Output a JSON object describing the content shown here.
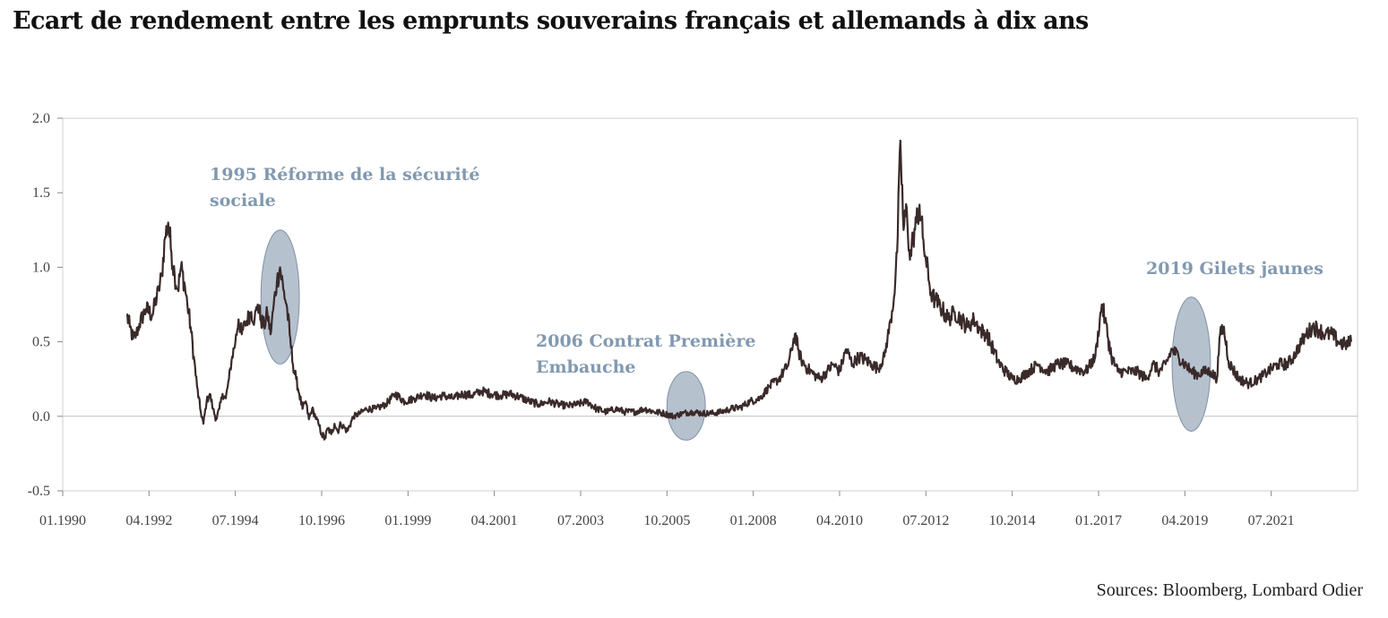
{
  "title": "Ecart de rendement entre les emprunts souverains français et allemands à dix ans",
  "source": "Sources: Bloomberg, Lombard Odier",
  "chart_data": {
    "type": "line",
    "xlim": [
      "1990-01",
      "2023-10"
    ],
    "ylim": [
      -0.5,
      2.0
    ],
    "y_ticks": [
      "-0.5",
      "0.0",
      "0.5",
      "1.0",
      "1.5",
      "2.0"
    ],
    "x_ticks": [
      "01.1990",
      "04.1992",
      "07.1994",
      "10.1996",
      "01.1999",
      "04.2001",
      "07.2003",
      "10.2005",
      "01.2008",
      "04.2010",
      "07.2012",
      "10.2014",
      "01.2017",
      "04.2019",
      "07.2021"
    ],
    "grid": false,
    "line_color": "#3a2a2a",
    "highlight_color": "#a9b6c6",
    "series": [
      {
        "points": [
          [
            "1991-09",
            0.68
          ],
          [
            "1991-10",
            0.6
          ],
          [
            "1991-11",
            0.52
          ],
          [
            "1991-12",
            0.55
          ],
          [
            "1992-01",
            0.62
          ],
          [
            "1992-03",
            0.72
          ],
          [
            "1992-05",
            0.68
          ],
          [
            "1992-07",
            0.85
          ],
          [
            "1992-08",
            0.95
          ],
          [
            "1992-09",
            1.2
          ],
          [
            "1992-10",
            1.3
          ],
          [
            "1992-11",
            1.1
          ],
          [
            "1992-12",
            0.95
          ],
          [
            "1993-01",
            0.85
          ],
          [
            "1993-02",
            1.0
          ],
          [
            "1993-03",
            0.9
          ],
          [
            "1993-04",
            0.75
          ],
          [
            "1993-05",
            0.6
          ],
          [
            "1993-06",
            0.4
          ],
          [
            "1993-07",
            0.2
          ],
          [
            "1993-08",
            0.05
          ],
          [
            "1993-09",
            -0.05
          ],
          [
            "1993-10",
            0.1
          ],
          [
            "1993-11",
            0.15
          ],
          [
            "1993-12",
            0.05
          ],
          [
            "1994-01",
            -0.02
          ],
          [
            "1994-02",
            0.05
          ],
          [
            "1994-03",
            0.15
          ],
          [
            "1994-04",
            0.12
          ],
          [
            "1994-05",
            0.25
          ],
          [
            "1994-06",
            0.4
          ],
          [
            "1994-07",
            0.5
          ],
          [
            "1994-08",
            0.65
          ],
          [
            "1994-09",
            0.55
          ],
          [
            "1994-10",
            0.62
          ],
          [
            "1994-12",
            0.7
          ],
          [
            "1995-01",
            0.65
          ],
          [
            "1995-02",
            0.75
          ],
          [
            "1995-03",
            0.65
          ],
          [
            "1995-04",
            0.6
          ],
          [
            "1995-05",
            0.7
          ],
          [
            "1995-06",
            0.55
          ],
          [
            "1995-07",
            0.75
          ],
          [
            "1995-08",
            0.9
          ],
          [
            "1995-09",
            1.0
          ],
          [
            "1995-10",
            0.85
          ],
          [
            "1995-11",
            0.75
          ],
          [
            "1995-12",
            0.55
          ],
          [
            "1996-01",
            0.35
          ],
          [
            "1996-02",
            0.25
          ],
          [
            "1996-03",
            0.15
          ],
          [
            "1996-04",
            0.05
          ],
          [
            "1996-05",
            0.1
          ],
          [
            "1996-06",
            -0.02
          ],
          [
            "1996-07",
            0.05
          ],
          [
            "1996-08",
            0.0
          ],
          [
            "1996-09",
            -0.05
          ],
          [
            "1996-10",
            -0.12
          ],
          [
            "1996-11",
            -0.15
          ],
          [
            "1996-12",
            -0.08
          ],
          [
            "1997-01",
            -0.12
          ],
          [
            "1997-02",
            -0.05
          ],
          [
            "1997-03",
            -0.1
          ],
          [
            "1997-04",
            -0.05
          ],
          [
            "1997-06",
            -0.1
          ],
          [
            "1997-08",
            0.0
          ],
          [
            "1997-10",
            0.02
          ],
          [
            "1997-12",
            0.05
          ],
          [
            "1998-03",
            0.05
          ],
          [
            "1998-06",
            0.08
          ],
          [
            "1998-09",
            0.15
          ],
          [
            "1998-12",
            0.1
          ],
          [
            "1999-03",
            0.12
          ],
          [
            "1999-06",
            0.15
          ],
          [
            "1999-09",
            0.12
          ],
          [
            "1999-12",
            0.14
          ],
          [
            "2000-03",
            0.12
          ],
          [
            "2000-06",
            0.15
          ],
          [
            "2000-09",
            0.14
          ],
          [
            "2000-12",
            0.17
          ],
          [
            "2001-03",
            0.15
          ],
          [
            "2001-06",
            0.14
          ],
          [
            "2001-09",
            0.15
          ],
          [
            "2001-12",
            0.13
          ],
          [
            "2002-03",
            0.1
          ],
          [
            "2002-06",
            0.08
          ],
          [
            "2002-09",
            0.1
          ],
          [
            "2002-12",
            0.08
          ],
          [
            "2003-03",
            0.07
          ],
          [
            "2003-06",
            0.08
          ],
          [
            "2003-09",
            0.1
          ],
          [
            "2003-12",
            0.05
          ],
          [
            "2004-03",
            0.03
          ],
          [
            "2004-06",
            0.05
          ],
          [
            "2004-09",
            0.03
          ],
          [
            "2004-12",
            0.03
          ],
          [
            "2005-03",
            0.05
          ],
          [
            "2005-06",
            0.03
          ],
          [
            "2005-09",
            0.02
          ],
          [
            "2005-12",
            0.0
          ],
          [
            "2006-03",
            0.02
          ],
          [
            "2006-06",
            0.03
          ],
          [
            "2006-09",
            0.02
          ],
          [
            "2006-12",
            0.02
          ],
          [
            "2007-03",
            0.03
          ],
          [
            "2007-06",
            0.05
          ],
          [
            "2007-09",
            0.06
          ],
          [
            "2007-12",
            0.1
          ],
          [
            "2008-03",
            0.12
          ],
          [
            "2008-06",
            0.2
          ],
          [
            "2008-09",
            0.25
          ],
          [
            "2008-12",
            0.35
          ],
          [
            "2009-02",
            0.55
          ],
          [
            "2009-03",
            0.45
          ],
          [
            "2009-04",
            0.38
          ],
          [
            "2009-06",
            0.32
          ],
          [
            "2009-08",
            0.28
          ],
          [
            "2009-10",
            0.25
          ],
          [
            "2009-12",
            0.3
          ],
          [
            "2010-02",
            0.35
          ],
          [
            "2010-04",
            0.3
          ],
          [
            "2010-06",
            0.45
          ],
          [
            "2010-08",
            0.35
          ],
          [
            "2010-10",
            0.4
          ],
          [
            "2010-12",
            0.38
          ],
          [
            "2011-02",
            0.35
          ],
          [
            "2011-04",
            0.32
          ],
          [
            "2011-06",
            0.4
          ],
          [
            "2011-08",
            0.65
          ],
          [
            "2011-09",
            0.8
          ],
          [
            "2011-10",
            1.1
          ],
          [
            "2011-11",
            1.85
          ],
          [
            "2011-12",
            1.25
          ],
          [
            "2012-01",
            1.4
          ],
          [
            "2012-02",
            1.05
          ],
          [
            "2012-03",
            1.2
          ],
          [
            "2012-04",
            1.3
          ],
          [
            "2012-05",
            1.42
          ],
          [
            "2012-06",
            1.2
          ],
          [
            "2012-07",
            1.05
          ],
          [
            "2012-08",
            0.9
          ],
          [
            "2012-09",
            0.8
          ],
          [
            "2012-10",
            0.78
          ],
          [
            "2012-11",
            0.75
          ],
          [
            "2012-12",
            0.72
          ],
          [
            "2013-02",
            0.65
          ],
          [
            "2013-04",
            0.7
          ],
          [
            "2013-06",
            0.65
          ],
          [
            "2013-08",
            0.6
          ],
          [
            "2013-10",
            0.65
          ],
          [
            "2013-12",
            0.58
          ],
          [
            "2014-02",
            0.55
          ],
          [
            "2014-04",
            0.45
          ],
          [
            "2014-06",
            0.35
          ],
          [
            "2014-08",
            0.3
          ],
          [
            "2014-10",
            0.25
          ],
          [
            "2014-12",
            0.25
          ],
          [
            "2015-03",
            0.3
          ],
          [
            "2015-06",
            0.35
          ],
          [
            "2015-09",
            0.3
          ],
          [
            "2015-12",
            0.35
          ],
          [
            "2016-03",
            0.35
          ],
          [
            "2016-06",
            0.32
          ],
          [
            "2016-09",
            0.3
          ],
          [
            "2016-12",
            0.4
          ],
          [
            "2017-02",
            0.75
          ],
          [
            "2017-03",
            0.65
          ],
          [
            "2017-05",
            0.4
          ],
          [
            "2017-07",
            0.3
          ],
          [
            "2017-10",
            0.3
          ],
          [
            "2018-01",
            0.3
          ],
          [
            "2018-04",
            0.25
          ],
          [
            "2018-06",
            0.35
          ],
          [
            "2018-08",
            0.3
          ],
          [
            "2018-10",
            0.35
          ],
          [
            "2018-12",
            0.45
          ],
          [
            "2019-02",
            0.4
          ],
          [
            "2019-04",
            0.35
          ],
          [
            "2019-06",
            0.3
          ],
          [
            "2019-08",
            0.28
          ],
          [
            "2019-10",
            0.3
          ],
          [
            "2019-12",
            0.3
          ],
          [
            "2020-02",
            0.25
          ],
          [
            "2020-03",
            0.55
          ],
          [
            "2020-04",
            0.6
          ],
          [
            "2020-06",
            0.35
          ],
          [
            "2020-09",
            0.25
          ],
          [
            "2020-12",
            0.22
          ],
          [
            "2021-03",
            0.25
          ],
          [
            "2021-06",
            0.3
          ],
          [
            "2021-09",
            0.35
          ],
          [
            "2021-12",
            0.35
          ],
          [
            "2022-02",
            0.4
          ],
          [
            "2022-04",
            0.48
          ],
          [
            "2022-06",
            0.55
          ],
          [
            "2022-08",
            0.6
          ],
          [
            "2022-10",
            0.58
          ],
          [
            "2022-12",
            0.55
          ],
          [
            "2023-02",
            0.55
          ],
          [
            "2023-04",
            0.5
          ],
          [
            "2023-06",
            0.48
          ],
          [
            "2023-08",
            0.5
          ]
        ]
      }
    ],
    "annotations": [
      {
        "text": [
          "1995 Réforme de la sécurité",
          "sociale"
        ],
        "x": "1995-09",
        "y": 0.8,
        "rx_months": 6,
        "ry": 0.45
      },
      {
        "text": [
          "2006 Contrat Première",
          "Embauche"
        ],
        "x": "2006-04",
        "y": 0.07,
        "rx_months": 6,
        "ry": 0.23
      },
      {
        "text": [
          "2019 Gilets jaunes"
        ],
        "x": "2019-06",
        "y": 0.35,
        "rx_months": 6,
        "ry": 0.45
      }
    ]
  }
}
